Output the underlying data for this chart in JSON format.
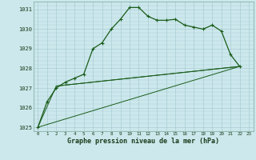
{
  "title": "Graphe pression niveau de la mer (hPa)",
  "background_color": "#cce8ec",
  "grid_color": "#aaccd4",
  "line_color": "#1a5c1a",
  "ylim": [
    1024.8,
    1031.4
  ],
  "yticks": [
    1025,
    1026,
    1027,
    1028,
    1029,
    1030,
    1031
  ],
  "xlim": [
    -0.5,
    23.5
  ],
  "line1_x": [
    0,
    1,
    2,
    3,
    4,
    5,
    6,
    7,
    8,
    9,
    10,
    11,
    12,
    13,
    14,
    15,
    16,
    17,
    18,
    19,
    20,
    21,
    22
  ],
  "line1_y": [
    1025.0,
    1026.3,
    1027.0,
    1027.3,
    1027.5,
    1027.7,
    1029.0,
    1029.3,
    1030.0,
    1030.5,
    1031.1,
    1031.1,
    1030.65,
    1030.45,
    1030.45,
    1030.5,
    1030.2,
    1030.1,
    1030.0,
    1030.2,
    1029.9,
    1028.7,
    1028.1
  ],
  "line2_x": [
    0,
    22
  ],
  "line2_y": [
    1025.0,
    1028.1
  ],
  "line3_x": [
    2,
    22
  ],
  "line3_y": [
    1027.1,
    1028.1
  ],
  "line4_x": [
    0,
    2,
    22
  ],
  "line4_y": [
    1025.0,
    1027.1,
    1028.1
  ]
}
